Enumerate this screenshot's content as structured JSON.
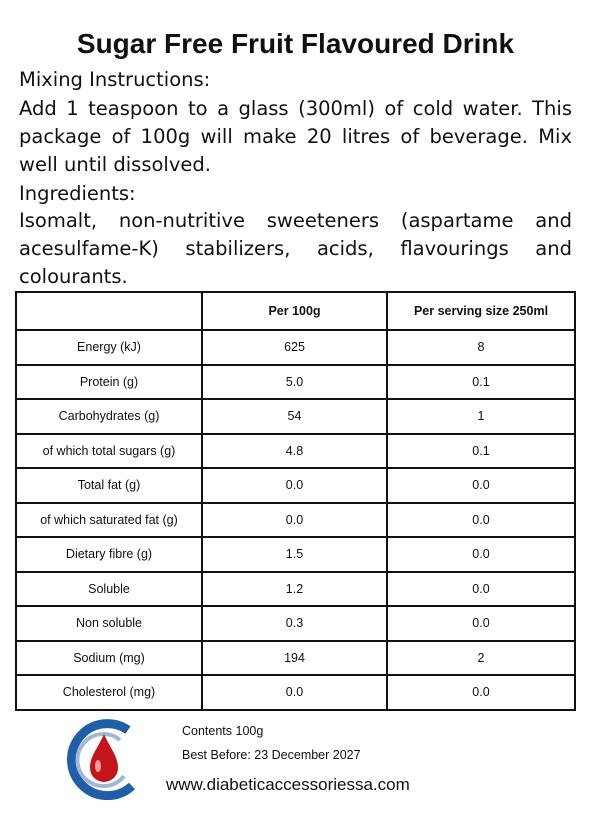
{
  "header": {
    "title": "Sugar Free Fruit Flavoured Drink"
  },
  "mixing": {
    "heading": "Mixing Instructions:",
    "text": "Add 1 teaspoon to a glass (300ml) of cold water. This package of 100g will make 20 litres of beverage. Mix well until dissolved."
  },
  "ingredients": {
    "heading": "Ingredients:",
    "text": "Isomalt, non-nutritive sweeteners (aspartame and acesulfame-K) stabilizers, acids, flavourings and colourants."
  },
  "table": {
    "columns": [
      "",
      "Per 100g",
      "Per serving size 250ml"
    ],
    "rows": [
      [
        "Energy (kJ)",
        "625",
        "8"
      ],
      [
        "Protein (g)",
        "5.0",
        "0.1"
      ],
      [
        "Carbohydrates (g)",
        "54",
        "1"
      ],
      [
        "of which total sugars (g)",
        "4.8",
        "0.1"
      ],
      [
        "Total fat (g)",
        "0.0",
        "0.0"
      ],
      [
        "of which saturated fat (g)",
        "0.0",
        "0.0"
      ],
      [
        "Dietary fibre (g)",
        "1.5",
        "0.0"
      ],
      [
        "Soluble",
        "1.2",
        "0.0"
      ],
      [
        "Non soluble",
        "0.3",
        "0.0"
      ],
      [
        "Sodium (mg)",
        "194",
        "2"
      ],
      [
        "Cholesterol (mg)",
        "0.0",
        "0.0"
      ]
    ]
  },
  "footer": {
    "contents": "Contents 100g",
    "best_before": "Best Before: 23 December 2027",
    "website": "www.diabeticaccessoriessa.com"
  }
}
